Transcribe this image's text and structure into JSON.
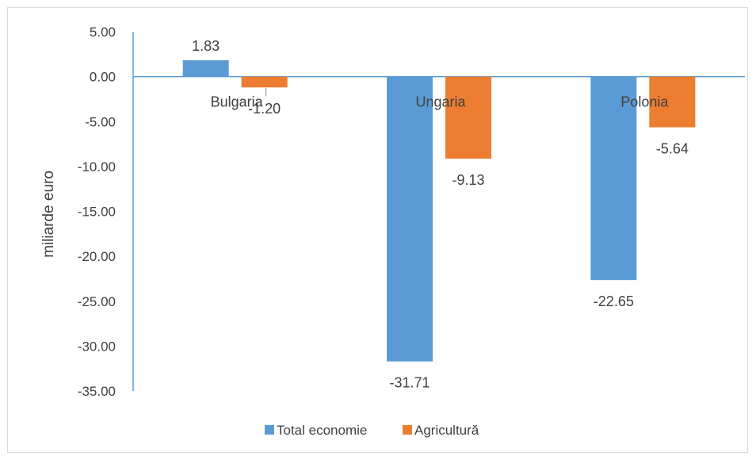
{
  "chart_data": {
    "type": "bar",
    "title": "",
    "xlabel": "",
    "ylabel": "miliarde euro",
    "ylim": [
      -35,
      5
    ],
    "yticks": [
      5,
      0,
      -5,
      -10,
      -15,
      -20,
      -25,
      -30,
      -35
    ],
    "ytick_labels": [
      "5.00",
      "0.00",
      "-5.00",
      "-10.00",
      "-15.00",
      "-20.00",
      "-25.00",
      "-30.00",
      "-35.00"
    ],
    "categories": [
      "Bulgaria",
      "Ungaria",
      "Polonia"
    ],
    "series": [
      {
        "name": "Total economie",
        "color": "#5b9bd5",
        "values": [
          1.83,
          -31.71,
          -22.65
        ],
        "labels": [
          "1.83",
          "-31.71",
          "-22.65"
        ]
      },
      {
        "name": "Agricultură",
        "color": "#ed7d31",
        "values": [
          -1.2,
          -9.13,
          -5.64
        ],
        "labels": [
          "-1.20",
          "-9.13",
          "-5.64"
        ]
      }
    ],
    "grid": false,
    "legend_position": "bottom"
  }
}
